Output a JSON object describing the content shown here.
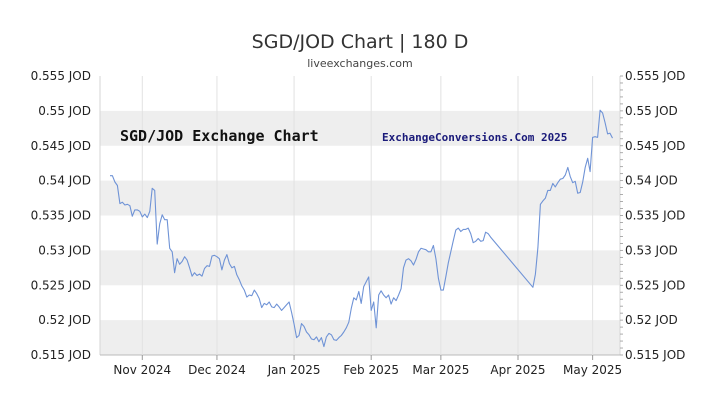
{
  "chart_data": {
    "type": "line",
    "title": "SGD/JOD Chart | 180 D",
    "subtitle": "liveexchanges.com",
    "watermark_left": "SGD/JOD Exchange Chart",
    "watermark_right": "ExchangeConversions.Com 2025",
    "ylim": [
      0.515,
      0.555
    ],
    "yticks": [
      0.555,
      0.55,
      0.545,
      0.54,
      0.535,
      0.53,
      0.525,
      0.52,
      0.515
    ],
    "ytick_labels": [
      "0.555 JOD",
      "0.55 JOD",
      "0.545 JOD",
      "0.54 JOD",
      "0.535 JOD",
      "0.53 JOD",
      "0.525 JOD",
      "0.52 JOD",
      "0.515 JOD"
    ],
    "xlim": [
      "2024-10-15",
      "2025-05-12"
    ],
    "xticks": [
      {
        "date": "2024-11-01",
        "label": "Nov 2024"
      },
      {
        "date": "2024-12-01",
        "label": "Dec 2024"
      },
      {
        "date": "2025-01-01",
        "label": "Jan 2025"
      },
      {
        "date": "2025-02-01",
        "label": "Feb 2025"
      },
      {
        "date": "2025-03-01",
        "label": "Mar 2025"
      },
      {
        "date": "2025-04-01",
        "label": "Apr 2025"
      },
      {
        "date": "2025-05-01",
        "label": "May 2025"
      }
    ],
    "grid": "alternating horizontal bands",
    "line_color": "#6f93d6",
    "band_color": "#eeeeee",
    "series": [
      {
        "points": [
          [
            "2024-10-19",
            0.5407
          ],
          [
            "2024-10-20",
            0.5407
          ],
          [
            "2024-10-21",
            0.5398
          ],
          [
            "2024-10-22",
            0.5393
          ],
          [
            "2024-10-23",
            0.5367
          ],
          [
            "2024-10-24",
            0.5369
          ],
          [
            "2024-10-25",
            0.5365
          ],
          [
            "2024-10-26",
            0.5366
          ],
          [
            "2024-10-27",
            0.5364
          ],
          [
            "2024-10-28",
            0.5349
          ],
          [
            "2024-10-29",
            0.5358
          ],
          [
            "2024-10-30",
            0.5358
          ],
          [
            "2024-10-31",
            0.5356
          ],
          [
            "2024-11-01",
            0.5348
          ],
          [
            "2024-11-02",
            0.5352
          ],
          [
            "2024-11-03",
            0.5347
          ],
          [
            "2024-11-04",
            0.5356
          ],
          [
            "2024-11-05",
            0.5389
          ],
          [
            "2024-11-06",
            0.5386
          ],
          [
            "2024-11-07",
            0.5309
          ],
          [
            "2024-11-08",
            0.5338
          ],
          [
            "2024-11-09",
            0.5351
          ],
          [
            "2024-11-10",
            0.5344
          ],
          [
            "2024-11-11",
            0.5344
          ],
          [
            "2024-11-12",
            0.5303
          ],
          [
            "2024-11-13",
            0.5298
          ],
          [
            "2024-11-14",
            0.5268
          ],
          [
            "2024-11-15",
            0.5288
          ],
          [
            "2024-11-16",
            0.528
          ],
          [
            "2024-11-17",
            0.5284
          ],
          [
            "2024-11-18",
            0.5291
          ],
          [
            "2024-11-19",
            0.5286
          ],
          [
            "2024-11-20",
            0.5275
          ],
          [
            "2024-11-21",
            0.5263
          ],
          [
            "2024-11-22",
            0.5268
          ],
          [
            "2024-11-23",
            0.5264
          ],
          [
            "2024-11-24",
            0.5266
          ],
          [
            "2024-11-25",
            0.5263
          ],
          [
            "2024-11-26",
            0.5274
          ],
          [
            "2024-11-27",
            0.5278
          ],
          [
            "2024-11-28",
            0.5277
          ],
          [
            "2024-11-29",
            0.5292
          ],
          [
            "2024-11-30",
            0.5293
          ],
          [
            "2024-12-01",
            0.5291
          ],
          [
            "2024-12-02",
            0.5288
          ],
          [
            "2024-12-03",
            0.5272
          ],
          [
            "2024-12-04",
            0.5286
          ],
          [
            "2024-12-05",
            0.5294
          ],
          [
            "2024-12-06",
            0.5281
          ],
          [
            "2024-12-07",
            0.5275
          ],
          [
            "2024-12-08",
            0.5277
          ],
          [
            "2024-12-09",
            0.5265
          ],
          [
            "2024-12-10",
            0.5258
          ],
          [
            "2024-12-11",
            0.5249
          ],
          [
            "2024-12-12",
            0.5243
          ],
          [
            "2024-12-13",
            0.5233
          ],
          [
            "2024-12-14",
            0.5236
          ],
          [
            "2024-12-15",
            0.5235
          ],
          [
            "2024-12-16",
            0.5243
          ],
          [
            "2024-12-17",
            0.5238
          ],
          [
            "2024-12-18",
            0.5231
          ],
          [
            "2024-12-19",
            0.5218
          ],
          [
            "2024-12-20",
            0.5224
          ],
          [
            "2024-12-21",
            0.5222
          ],
          [
            "2024-12-22",
            0.5226
          ],
          [
            "2024-12-23",
            0.5219
          ],
          [
            "2024-12-24",
            0.5218
          ],
          [
            "2024-12-25",
            0.5223
          ],
          [
            "2024-12-26",
            0.5219
          ],
          [
            "2024-12-27",
            0.5214
          ],
          [
            "2024-12-28",
            0.5218
          ],
          [
            "2024-12-29",
            0.5222
          ],
          [
            "2024-12-30",
            0.5226
          ],
          [
            "2024-12-31",
            0.5211
          ],
          [
            "2025-01-01",
            0.5194
          ],
          [
            "2025-01-02",
            0.5175
          ],
          [
            "2025-01-03",
            0.5178
          ],
          [
            "2025-01-04",
            0.5195
          ],
          [
            "2025-01-05",
            0.5191
          ],
          [
            "2025-01-06",
            0.5183
          ],
          [
            "2025-01-07",
            0.5179
          ],
          [
            "2025-01-08",
            0.5173
          ],
          [
            "2025-01-09",
            0.5172
          ],
          [
            "2025-01-10",
            0.5176
          ],
          [
            "2025-01-11",
            0.5169
          ],
          [
            "2025-01-12",
            0.5175
          ],
          [
            "2025-01-13",
            0.5162
          ],
          [
            "2025-01-14",
            0.5176
          ],
          [
            "2025-01-15",
            0.5181
          ],
          [
            "2025-01-16",
            0.5179
          ],
          [
            "2025-01-17",
            0.5172
          ],
          [
            "2025-01-18",
            0.5171
          ],
          [
            "2025-01-19",
            0.5175
          ],
          [
            "2025-01-20",
            0.5178
          ],
          [
            "2025-01-21",
            0.5183
          ],
          [
            "2025-01-22",
            0.5189
          ],
          [
            "2025-01-23",
            0.5197
          ],
          [
            "2025-01-24",
            0.5217
          ],
          [
            "2025-01-25",
            0.5232
          ],
          [
            "2025-01-26",
            0.5229
          ],
          [
            "2025-01-27",
            0.5241
          ],
          [
            "2025-01-28",
            0.5224
          ],
          [
            "2025-01-29",
            0.5248
          ],
          [
            "2025-01-30",
            0.5255
          ],
          [
            "2025-01-31",
            0.5262
          ],
          [
            "2025-02-01",
            0.5214
          ],
          [
            "2025-02-02",
            0.5226
          ],
          [
            "2025-02-03",
            0.5189
          ],
          [
            "2025-02-04",
            0.5236
          ],
          [
            "2025-02-05",
            0.5242
          ],
          [
            "2025-02-06",
            0.5236
          ],
          [
            "2025-02-07",
            0.5232
          ],
          [
            "2025-02-08",
            0.5236
          ],
          [
            "2025-02-09",
            0.5223
          ],
          [
            "2025-02-10",
            0.5232
          ],
          [
            "2025-02-11",
            0.5228
          ],
          [
            "2025-02-12",
            0.5236
          ],
          [
            "2025-02-13",
            0.5245
          ],
          [
            "2025-02-14",
            0.5275
          ],
          [
            "2025-02-15",
            0.5286
          ],
          [
            "2025-02-16",
            0.5288
          ],
          [
            "2025-02-17",
            0.5285
          ],
          [
            "2025-02-18",
            0.5279
          ],
          [
            "2025-02-19",
            0.5287
          ],
          [
            "2025-02-20",
            0.5298
          ],
          [
            "2025-02-21",
            0.5303
          ],
          [
            "2025-02-22",
            0.5302
          ],
          [
            "2025-02-23",
            0.5301
          ],
          [
            "2025-02-24",
            0.5298
          ],
          [
            "2025-02-25",
            0.5298
          ],
          [
            "2025-02-26",
            0.5307
          ],
          [
            "2025-02-27",
            0.5288
          ],
          [
            "2025-02-28",
            0.526
          ],
          [
            "2025-03-01",
            0.5243
          ],
          [
            "2025-03-02",
            0.5243
          ],
          [
            "2025-03-03",
            0.5262
          ],
          [
            "2025-03-04",
            0.5282
          ],
          [
            "2025-03-05",
            0.5298
          ],
          [
            "2025-03-06",
            0.5314
          ],
          [
            "2025-03-07",
            0.5329
          ],
          [
            "2025-03-08",
            0.5332
          ],
          [
            "2025-03-09",
            0.5327
          ],
          [
            "2025-03-10",
            0.533
          ],
          [
            "2025-03-11",
            0.533
          ],
          [
            "2025-03-12",
            0.5332
          ],
          [
            "2025-03-13",
            0.5324
          ],
          [
            "2025-03-14",
            0.5311
          ],
          [
            "2025-03-15",
            0.5313
          ],
          [
            "2025-03-16",
            0.5317
          ],
          [
            "2025-03-17",
            0.5313
          ],
          [
            "2025-03-18",
            0.5314
          ],
          [
            "2025-03-19",
            0.5326
          ],
          [
            "2025-03-20",
            0.5324
          ],
          [
            "2025-03-21",
            0.5319
          ],
          [
            "2025-04-07",
            0.5247
          ],
          [
            "2025-04-08",
            0.5266
          ],
          [
            "2025-04-09",
            0.5304
          ],
          [
            "2025-04-10",
            0.5366
          ],
          [
            "2025-04-11",
            0.5371
          ],
          [
            "2025-04-12",
            0.5375
          ],
          [
            "2025-04-13",
            0.5386
          ],
          [
            "2025-04-14",
            0.5386
          ],
          [
            "2025-04-15",
            0.5396
          ],
          [
            "2025-04-16",
            0.5391
          ],
          [
            "2025-04-17",
            0.5397
          ],
          [
            "2025-04-18",
            0.5402
          ],
          [
            "2025-04-19",
            0.5403
          ],
          [
            "2025-04-20",
            0.5408
          ],
          [
            "2025-04-21",
            0.5419
          ],
          [
            "2025-04-22",
            0.5406
          ],
          [
            "2025-04-23",
            0.5397
          ],
          [
            "2025-04-24",
            0.5399
          ],
          [
            "2025-04-25",
            0.5382
          ],
          [
            "2025-04-26",
            0.5383
          ],
          [
            "2025-04-27",
            0.5398
          ],
          [
            "2025-04-28",
            0.5419
          ],
          [
            "2025-04-29",
            0.5432
          ],
          [
            "2025-04-30",
            0.5413
          ],
          [
            "2025-05-01",
            0.5462
          ],
          [
            "2025-05-02",
            0.5463
          ],
          [
            "2025-05-03",
            0.5462
          ],
          [
            "2025-05-04",
            0.5501
          ],
          [
            "2025-05-05",
            0.5497
          ],
          [
            "2025-05-06",
            0.5483
          ],
          [
            "2025-05-07",
            0.5467
          ],
          [
            "2025-05-08",
            0.5468
          ],
          [
            "2025-05-09",
            0.5461
          ]
        ]
      }
    ]
  }
}
